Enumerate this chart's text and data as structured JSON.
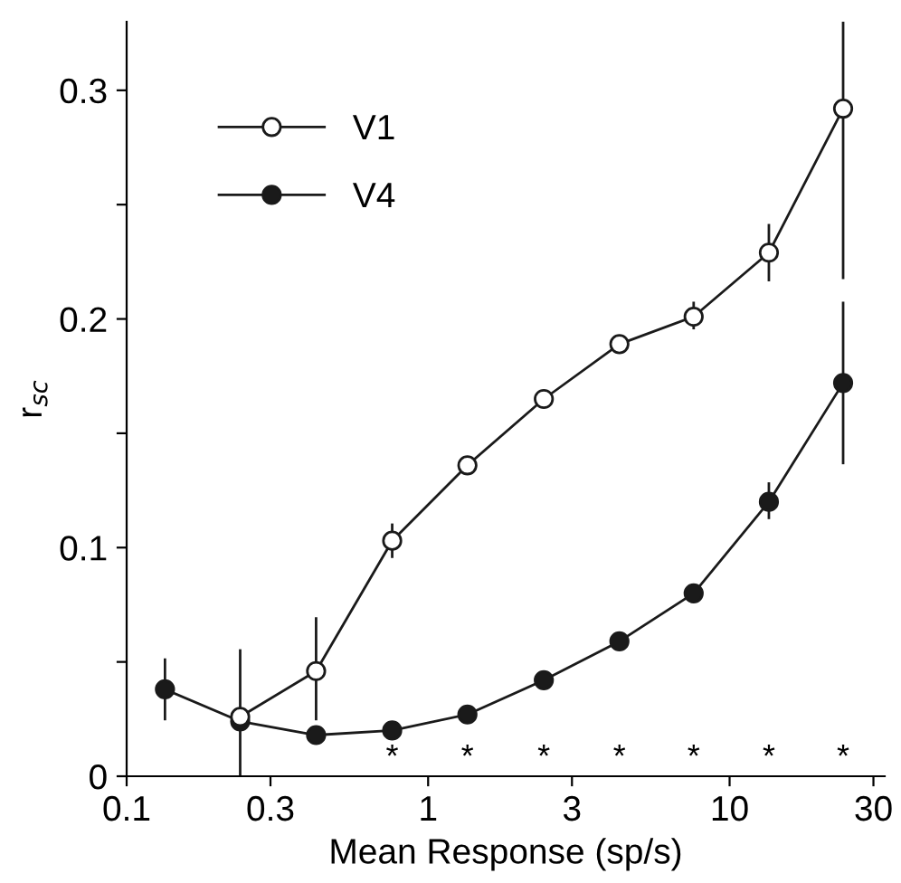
{
  "chart_data": {
    "type": "line",
    "xlabel": "Mean Response (sp/s)",
    "ylabel": "r$_{sc}$",
    "log": "x",
    "x": [
      0.134,
      0.238,
      0.425,
      0.76,
      1.35,
      2.42,
      4.31,
      7.6,
      13.5,
      23.8
    ],
    "xlim": [
      0.1,
      32.7
    ],
    "xticks": [
      0.1,
      0.3,
      1,
      3,
      10,
      30
    ],
    "ylim": [
      0,
      0.33
    ],
    "yticks": [
      0,
      {
        "value": 0.05,
        "label": null
      },
      0.1,
      {
        "value": 0.15,
        "label": null
      },
      0.2,
      {
        "value": 0.25,
        "label": null
      },
      0.3
    ],
    "marker": "circle",
    "line_style": "solid",
    "legend": "top left",
    "grid": false,
    "series": [
      {
        "name": "V1",
        "color": "#ffffff",
        "values": [
          null,
          0.026,
          0.046,
          0.103,
          0.136,
          0.165,
          0.189,
          0.201,
          0.229,
          0.292
        ],
        "errors": [
          null,
          [
            0.0,
            0.055
          ],
          [
            0.025,
            0.069
          ],
          [
            0.096,
            0.11
          ],
          null,
          null,
          null,
          [
            0.196,
            0.207
          ],
          [
            0.217,
            0.241
          ],
          [
            0.218,
            0.34
          ]
        ]
      },
      {
        "name": "V4",
        "color": "#1a1a1a",
        "values": [
          0.038,
          0.024,
          0.018,
          0.02,
          0.027,
          0.042,
          0.059,
          0.08,
          0.12,
          0.172
        ],
        "errors": [
          [
            0.025,
            0.051
          ],
          null,
          null,
          null,
          null,
          null,
          null,
          null,
          [
            0.113,
            0.128
          ],
          [
            0.137,
            0.207
          ]
        ]
      }
    ],
    "annotations": [
      "*",
      "*",
      "*",
      "*",
      "*",
      "*",
      "*"
    ]
  }
}
